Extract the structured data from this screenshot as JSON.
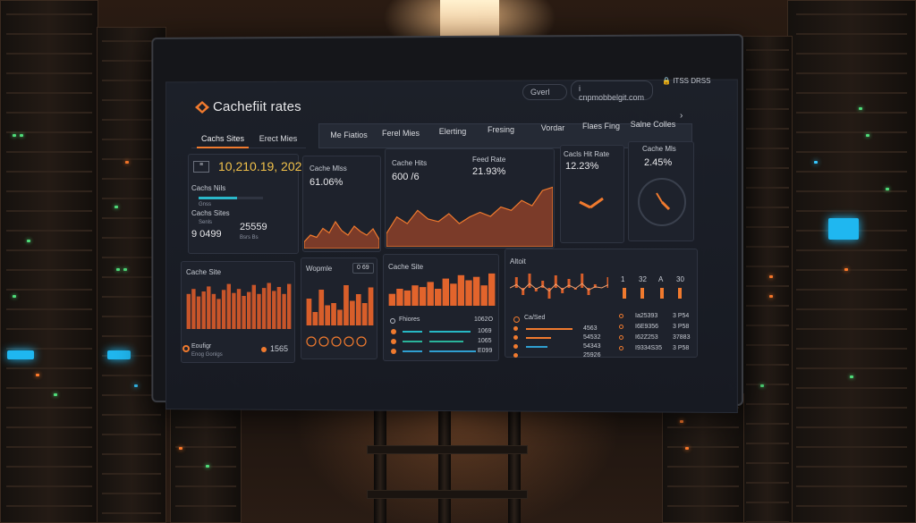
{
  "app": {
    "title": "Cachefiit rates",
    "header_pill": "Gverl",
    "header_contact": "cnpmobbelgit.com",
    "header_icon_a": "i",
    "header_box": "ITSS\nDRSS"
  },
  "left_tabs": [
    "Cachs Sites",
    "Erect Mies"
  ],
  "tabs": [
    "Me Fiatios",
    "Ferel Mies",
    "Elerting",
    "Fresing",
    "Vordar",
    "Flaes Fing",
    "Salne Colles"
  ],
  "cards": {
    "summary": {
      "value": "10,210.19, 202",
      "label_a": "Cachs Nils",
      "label_b": "Cachs Sites",
      "num_left": "9 0499",
      "num_right": "25559",
      "tiny_left": "Gnss",
      "tiny_right": "Bsrs Bs",
      "tiny_c": "Senls"
    },
    "cache_miss": {
      "label": "Cache Mlss",
      "value": "61.06%"
    },
    "cache_hits": {
      "label": "Cache Hits",
      "value": "600 /6"
    },
    "feed_rate": {
      "label": "Feed Rate",
      "value": "21.93%"
    },
    "hit_rate": {
      "label": "Cacls Hit Rate",
      "value": "12.23%"
    },
    "miss_gauge": {
      "label": "Cache Mls",
      "value": "2.45%"
    },
    "cache_site": {
      "label": "Cache Site",
      "footer_label": "Eoufigr",
      "footer_sub": "Enog Gonlgs",
      "footer_value": "1565"
    },
    "wopmle": {
      "label": "Wopmle",
      "badge": "0 69"
    },
    "cache_site2": {
      "label": "Cache Site",
      "list_header": "Fhiores",
      "list_header_val": "1062O",
      "rows": [
        "1069",
        "1065",
        "E099"
      ]
    },
    "altoit": {
      "label": "Altoit",
      "axis": [
        "1",
        "32",
        "A",
        "30"
      ],
      "list_label": "Ca/Sed",
      "mid_rows": [
        "4563",
        "54532",
        "54343",
        "25926"
      ],
      "right_rows": [
        "Ia25393",
        "I6E9356",
        "I62Z253",
        "I9334S35"
      ],
      "right_vals": [
        "3 P54",
        "3 P58",
        "37883",
        "3 P58"
      ]
    }
  }
}
